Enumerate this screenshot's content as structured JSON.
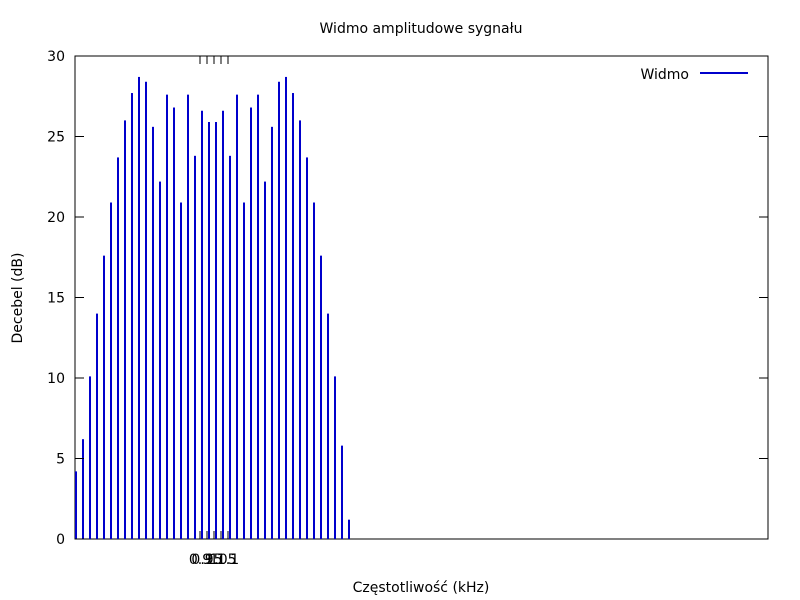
{
  "chart_data": {
    "type": "bar",
    "title": "Widmo amplitudowe sygnału",
    "xlabel": "Częstotliwość (kHz)",
    "ylabel": "Decebel (dB)",
    "ylim": [
      0,
      30
    ],
    "y_ticks": [
      0,
      5,
      10,
      15,
      20,
      25,
      30
    ],
    "x_tick_labels": [
      "0.9",
      "0.95",
      "1",
      "1.05",
      "1.1"
    ],
    "grid": false,
    "legend_position": "top-right",
    "series": [
      {
        "name": "Widmo",
        "color": "#0000cc",
        "values": [
          4.2,
          6.2,
          10.1,
          14.0,
          17.6,
          20.9,
          23.7,
          26.0,
          27.7,
          28.7,
          28.4,
          25.6,
          22.2,
          27.6,
          26.8,
          20.9,
          27.6,
          23.8,
          26.6,
          25.9,
          25.9,
          26.6,
          23.8,
          27.6,
          20.9,
          26.8,
          27.6,
          22.2,
          25.6,
          28.4,
          28.7,
          27.7,
          26.0,
          23.7,
          20.9,
          17.6,
          14.0,
          10.1,
          5.8,
          1.2
        ]
      }
    ]
  }
}
